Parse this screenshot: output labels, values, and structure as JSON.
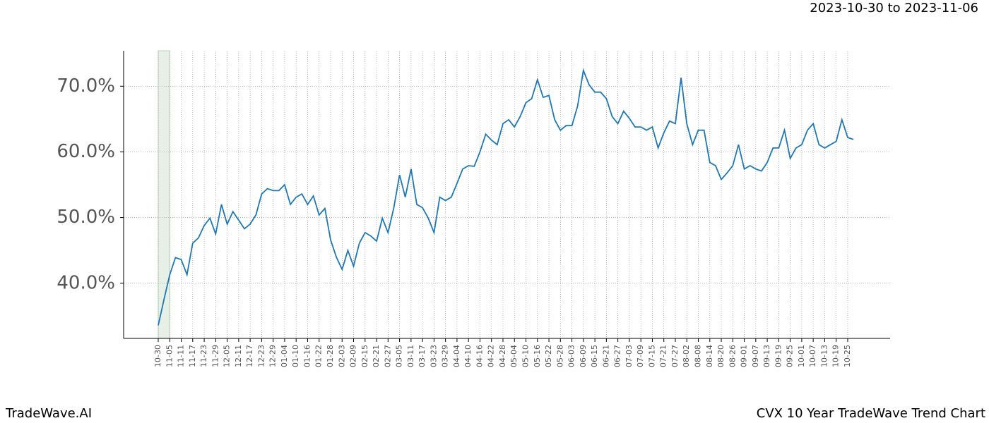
{
  "header": {
    "range": "2023-10-30 to 2023-11-06"
  },
  "footer": {
    "brand": "TradeWave.AI",
    "chart_name": "CVX 10 Year TradeWave Trend Chart"
  },
  "chart_data": {
    "type": "line",
    "categories": [
      "10-30",
      null,
      "11-05",
      null,
      "11-11",
      null,
      "11-17",
      null,
      "11-23",
      null,
      "11-29",
      null,
      "12-05",
      null,
      "12-11",
      null,
      "12-17",
      null,
      "12-23",
      null,
      "12-29",
      null,
      "01-04",
      null,
      "01-10",
      null,
      "01-16",
      null,
      "01-22",
      null,
      "01-28",
      null,
      "02-03",
      null,
      "02-09",
      null,
      "02-15",
      null,
      "02-21",
      null,
      "02-27",
      null,
      "03-05",
      null,
      "03-11",
      null,
      "03-17",
      null,
      "03-23",
      null,
      "03-29",
      null,
      "04-04",
      null,
      "04-10",
      null,
      "04-16",
      null,
      "04-22",
      null,
      "04-28",
      null,
      "05-04",
      null,
      "05-10",
      null,
      "05-16",
      null,
      "05-22",
      null,
      "05-28",
      null,
      "06-03",
      null,
      "06-09",
      null,
      "06-15",
      null,
      "06-21",
      null,
      "06-27",
      null,
      "07-03",
      null,
      "07-09",
      null,
      "07-15",
      null,
      "07-21",
      null,
      "07-27",
      null,
      "08-02",
      null,
      "08-08",
      null,
      "08-14",
      null,
      "08-20",
      null,
      "08-26",
      null,
      "09-01",
      null,
      "09-07",
      null,
      "09-13",
      null,
      "09-19",
      null,
      "09-25",
      null,
      "10-01",
      null,
      "10-07",
      null,
      "10-13",
      null,
      "10-19",
      null,
      "10-25",
      null
    ],
    "series": [
      {
        "color": "#1f77b4",
        "values": [
          33.6,
          37.5,
          41.3,
          43.9,
          43.6,
          41.3,
          46.1,
          46.9,
          48.8,
          49.9,
          47.5,
          52.0,
          49.0,
          50.9,
          49.6,
          48.3,
          49.0,
          50.4,
          53.6,
          54.4,
          54.1,
          54.1,
          55.0,
          52.0,
          53.1,
          53.6,
          52.0,
          53.3,
          50.4,
          51.4,
          46.6,
          44.0,
          42.1,
          45.0,
          42.6,
          46.1,
          47.7,
          47.2,
          46.4,
          49.9,
          47.7,
          51.5,
          56.5,
          53.1,
          57.4,
          52.0,
          51.5,
          49.9,
          47.7,
          53.1,
          52.6,
          53.1,
          55.2,
          57.4,
          57.9,
          57.8,
          60.0,
          62.7,
          61.8,
          61.1,
          64.3,
          64.9,
          63.8,
          65.4,
          67.5,
          68.1,
          71.0,
          68.3,
          68.6,
          64.9,
          63.3,
          64.0,
          64.0,
          67.0,
          72.4,
          70.2,
          69.1,
          69.1,
          68.1,
          65.4,
          64.3,
          66.2,
          65.1,
          63.8,
          63.8,
          63.3,
          63.8,
          60.6,
          62.9,
          64.7,
          64.3,
          71.3,
          64.3,
          61.1,
          63.3,
          63.3,
          58.4,
          57.9,
          55.8,
          56.8,
          57.9,
          61.1,
          57.4,
          57.9,
          57.4,
          57.1,
          58.4,
          60.6,
          60.6,
          63.3,
          59.0,
          60.6,
          61.1,
          63.3,
          64.3,
          61.1,
          60.6,
          61.1,
          61.6,
          64.9,
          62.2,
          61.9
        ]
      }
    ],
    "ylim": [
      31.6,
      75.4
    ],
    "yticks": [
      {
        "value": 40,
        "label": "40.0%"
      },
      {
        "value": 50,
        "label": "50.0%"
      },
      {
        "value": 60,
        "label": "60.0%"
      },
      {
        "value": 70,
        "label": "70.0%"
      }
    ],
    "grid": true,
    "highlight_color": "#e6f0e6"
  }
}
